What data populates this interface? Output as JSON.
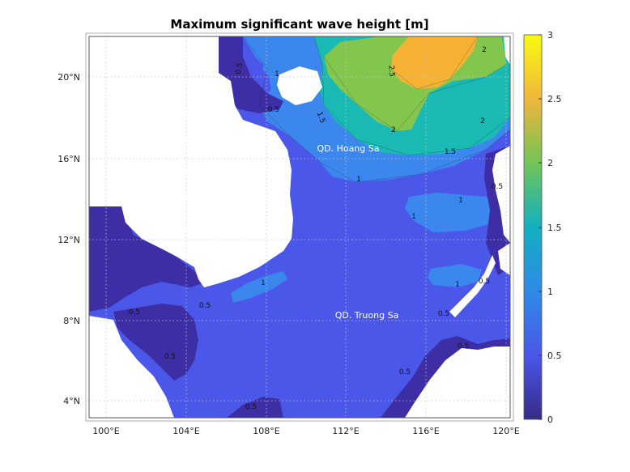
{
  "title": "Maximum significant wave height [m]",
  "map": {
    "lon_ticks": [
      "100°E",
      "104°E",
      "108°E",
      "112°E",
      "116°E",
      "120°E"
    ],
    "lat_ticks": [
      "4°N",
      "8°N",
      "12°N",
      "16°N",
      "20°N"
    ],
    "place_labels": {
      "hoang_sa": "QD. Hoang Sa",
      "truong_sa": "QD. Truong Sa"
    },
    "contour_labels": [
      "0.5",
      "1",
      "1.5",
      "2",
      "2.5"
    ]
  },
  "colorbar": {
    "ticks": [
      "0",
      "0.5",
      "1",
      "1.5",
      "2",
      "2.5",
      "3"
    ],
    "range": [
      0,
      3
    ],
    "colormap": "parula",
    "colors": [
      "#3b2fa0",
      "#4a56e6",
      "#3b86f0",
      "#1dbab8",
      "#7cc64a",
      "#f3b032",
      "#f8f520"
    ]
  },
  "colors": {
    "land": "#ffffff",
    "level_0": "#3d2ea6",
    "level_05": "#4a57e8",
    "level_1": "#3b87ee",
    "level_15": "#1bb9b3",
    "level_2": "#83c64e",
    "level_25": "#f5b234"
  }
}
